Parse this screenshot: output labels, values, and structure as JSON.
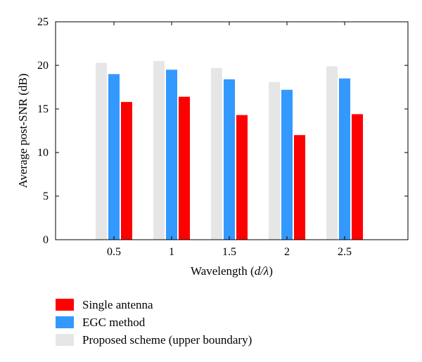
{
  "chart_data": {
    "type": "bar",
    "categories": [
      "0.5",
      "1",
      "1.5",
      "2",
      "2.5"
    ],
    "series": [
      {
        "name": "Proposed scheme (upper boundary)",
        "color": "#e6e6e6",
        "values": [
          20.3,
          20.5,
          19.7,
          18.1,
          19.9
        ]
      },
      {
        "name": "EGC method",
        "color": "#3399ff",
        "values": [
          19.0,
          19.5,
          18.4,
          17.2,
          18.5
        ]
      },
      {
        "name": "Single antenna",
        "color": "#ff0000",
        "values": [
          15.8,
          16.4,
          14.3,
          12.0,
          14.4
        ]
      }
    ],
    "legend_order": [
      2,
      1,
      0
    ],
    "legend_position": "bottom-left, below plot",
    "ylim": [
      0,
      25
    ],
    "yticks": [
      "0",
      "5",
      "10",
      "15",
      "20",
      "25"
    ],
    "ylabel": "Average post-SNR (dB)",
    "xlabel_prefix": "Wavelength (",
    "xlabel_var": "d/λ",
    "xlabel_suffix": ")",
    "grid": false
  }
}
